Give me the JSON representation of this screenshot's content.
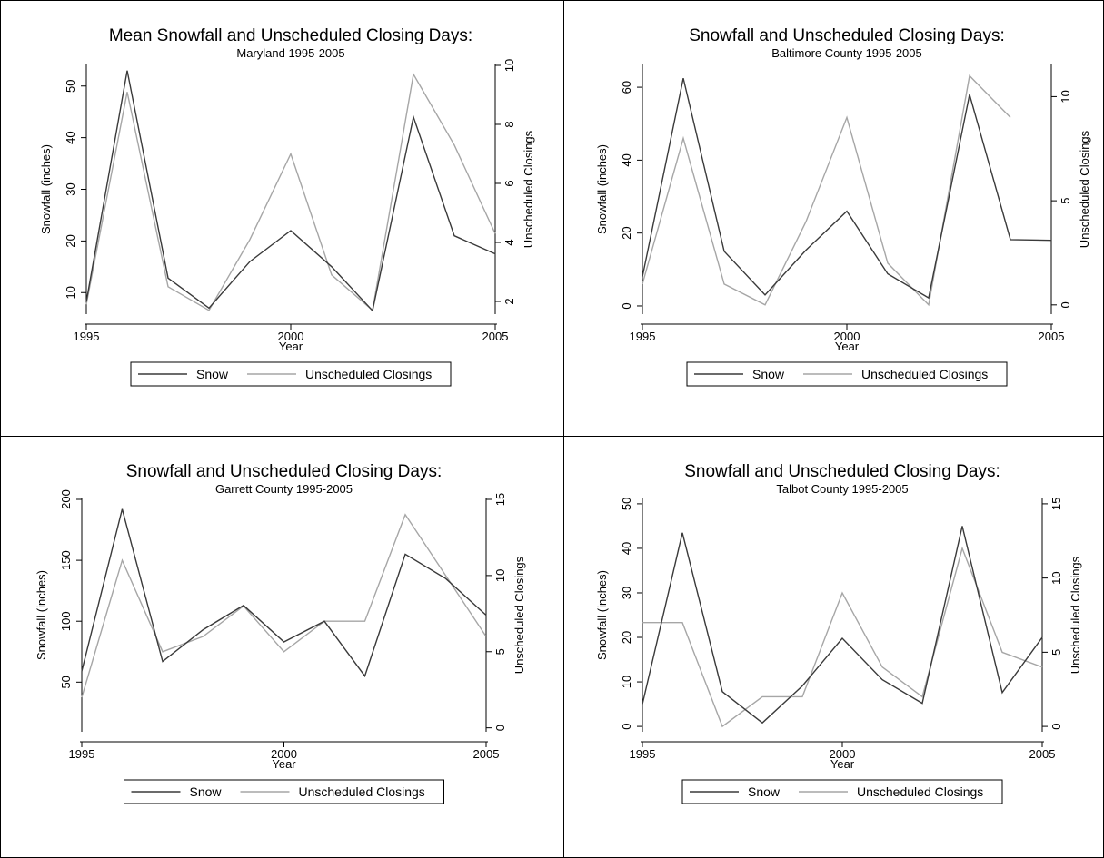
{
  "legend_labels": {
    "snow": "Snow",
    "closings": "Unscheduled Closings"
  },
  "colors": {
    "snow": "#3a3a3a",
    "closings": "#a6a6a6",
    "axis": "#000000"
  },
  "chart_data": [
    {
      "type": "line",
      "title": "Mean Snowfall and Unscheduled Closing Days:",
      "subtitle": "Maryland 1995-2005",
      "xlabel": "Year",
      "ylabel": "Snowfall (inches)",
      "y2label": "Unscheduled Closings",
      "xlim": [
        1995,
        2005
      ],
      "xticks": [
        1995,
        2000,
        2005
      ],
      "ylim": [
        6,
        54
      ],
      "yticks": [
        10,
        20,
        30,
        40,
        50
      ],
      "y2lim": [
        1.6,
        10
      ],
      "y2ticks": [
        2,
        4,
        6,
        8,
        10
      ],
      "legend": "bottom",
      "x": [
        1995,
        1996,
        1997,
        1998,
        1999,
        2000,
        2001,
        2002,
        2003,
        2004,
        2005
      ],
      "series": [
        {
          "name": "Snow",
          "axis": "left",
          "values": [
            8.2,
            53,
            12.8,
            7,
            16,
            22,
            15,
            6.5,
            44,
            21,
            17.5
          ]
        },
        {
          "name": "Unscheduled Closings",
          "axis": "right",
          "values": [
            1.9,
            9.1,
            2.5,
            1.7,
            4.1,
            7.0,
            2.9,
            1.7,
            9.7,
            7.3,
            4.3
          ]
        }
      ]
    },
    {
      "type": "line",
      "title": "Snowfall and Unscheduled Closing Days:",
      "subtitle": "Baltimore County 1995-2005",
      "xlabel": "Year",
      "ylabel": "Snowfall (inches)",
      "y2label": "Unscheduled Closings",
      "xlim": [
        1995,
        2005
      ],
      "xticks": [
        1995,
        2000,
        2005
      ],
      "ylim": [
        -2,
        66
      ],
      "yticks": [
        0,
        20,
        40,
        60
      ],
      "y2lim": [
        -0.4,
        11.5
      ],
      "y2ticks": [
        0,
        5,
        10
      ],
      "legend": "bottom",
      "x": [
        1995,
        1996,
        1997,
        1998,
        1999,
        2000,
        2001,
        2002,
        2003,
        2004,
        2005
      ],
      "series": [
        {
          "name": "Snow",
          "axis": "left",
          "values": [
            8,
            62.5,
            15,
            3,
            15.3,
            26,
            8.8,
            2.2,
            58,
            18.2,
            18
          ]
        },
        {
          "name": "Unscheduled Closings",
          "axis": "right",
          "values": [
            1.0,
            8.0,
            1.0,
            0.0,
            4.0,
            9.0,
            2.0,
            0.0,
            11.0,
            9.0,
            null
          ]
        }
      ]
    },
    {
      "type": "line",
      "title": "Snowfall and Unscheduled Closing Days:",
      "subtitle": "Garrett County 1995-2005",
      "xlabel": "Year",
      "ylabel": "Snowfall (inches)",
      "y2label": "Unscheduled Closings",
      "xlim": [
        1995,
        2005
      ],
      "xticks": [
        1995,
        2000,
        2005
      ],
      "ylim": [
        10,
        200
      ],
      "yticks": [
        50,
        100,
        150,
        200
      ],
      "y2lim": [
        -0.2,
        15
      ],
      "y2ticks": [
        0,
        5,
        10,
        15
      ],
      "legend": "bottom",
      "x": [
        1995,
        1996,
        1997,
        1998,
        1999,
        2000,
        2001,
        2002,
        2003,
        2004,
        2005
      ],
      "series": [
        {
          "name": "Snow",
          "axis": "left",
          "values": [
            59,
            192,
            67,
            93,
            113,
            83,
            100,
            55,
            155,
            135,
            105
          ]
        },
        {
          "name": "Unscheduled Closings",
          "axis": "right",
          "values": [
            2.0,
            11.0,
            5.0,
            6.0,
            8.0,
            5.0,
            7.0,
            7.0,
            14.0,
            10.0,
            6.0
          ]
        }
      ]
    },
    {
      "type": "line",
      "title": "Snowfall and Unscheduled Closing Days:",
      "subtitle": "Talbot County 1995-2005",
      "xlabel": "Year",
      "ylabel": "Snowfall (inches)",
      "y2label": "Unscheduled Closings",
      "xlim": [
        1995,
        2005
      ],
      "xticks": [
        1995,
        2000,
        2005
      ],
      "ylim": [
        -1,
        51
      ],
      "yticks": [
        0,
        10,
        20,
        30,
        40,
        50
      ],
      "y2lim": [
        -0.3,
        15.3
      ],
      "y2ticks": [
        0,
        5,
        10,
        15
      ],
      "legend": "bottom",
      "x": [
        1995,
        1996,
        1997,
        1998,
        1999,
        2000,
        2001,
        2002,
        2003,
        2004,
        2005
      ],
      "series": [
        {
          "name": "Snow",
          "axis": "left",
          "values": [
            5,
            43.5,
            7.8,
            0.8,
            9.1,
            19.8,
            10.5,
            5.2,
            45,
            7.6,
            20
          ]
        },
        {
          "name": "Unscheduled Closings",
          "axis": "right",
          "values": [
            7.0,
            7.0,
            0.0,
            2.0,
            2.0,
            9.0,
            4.0,
            2.0,
            12.0,
            5.0,
            4.0
          ]
        }
      ]
    }
  ]
}
